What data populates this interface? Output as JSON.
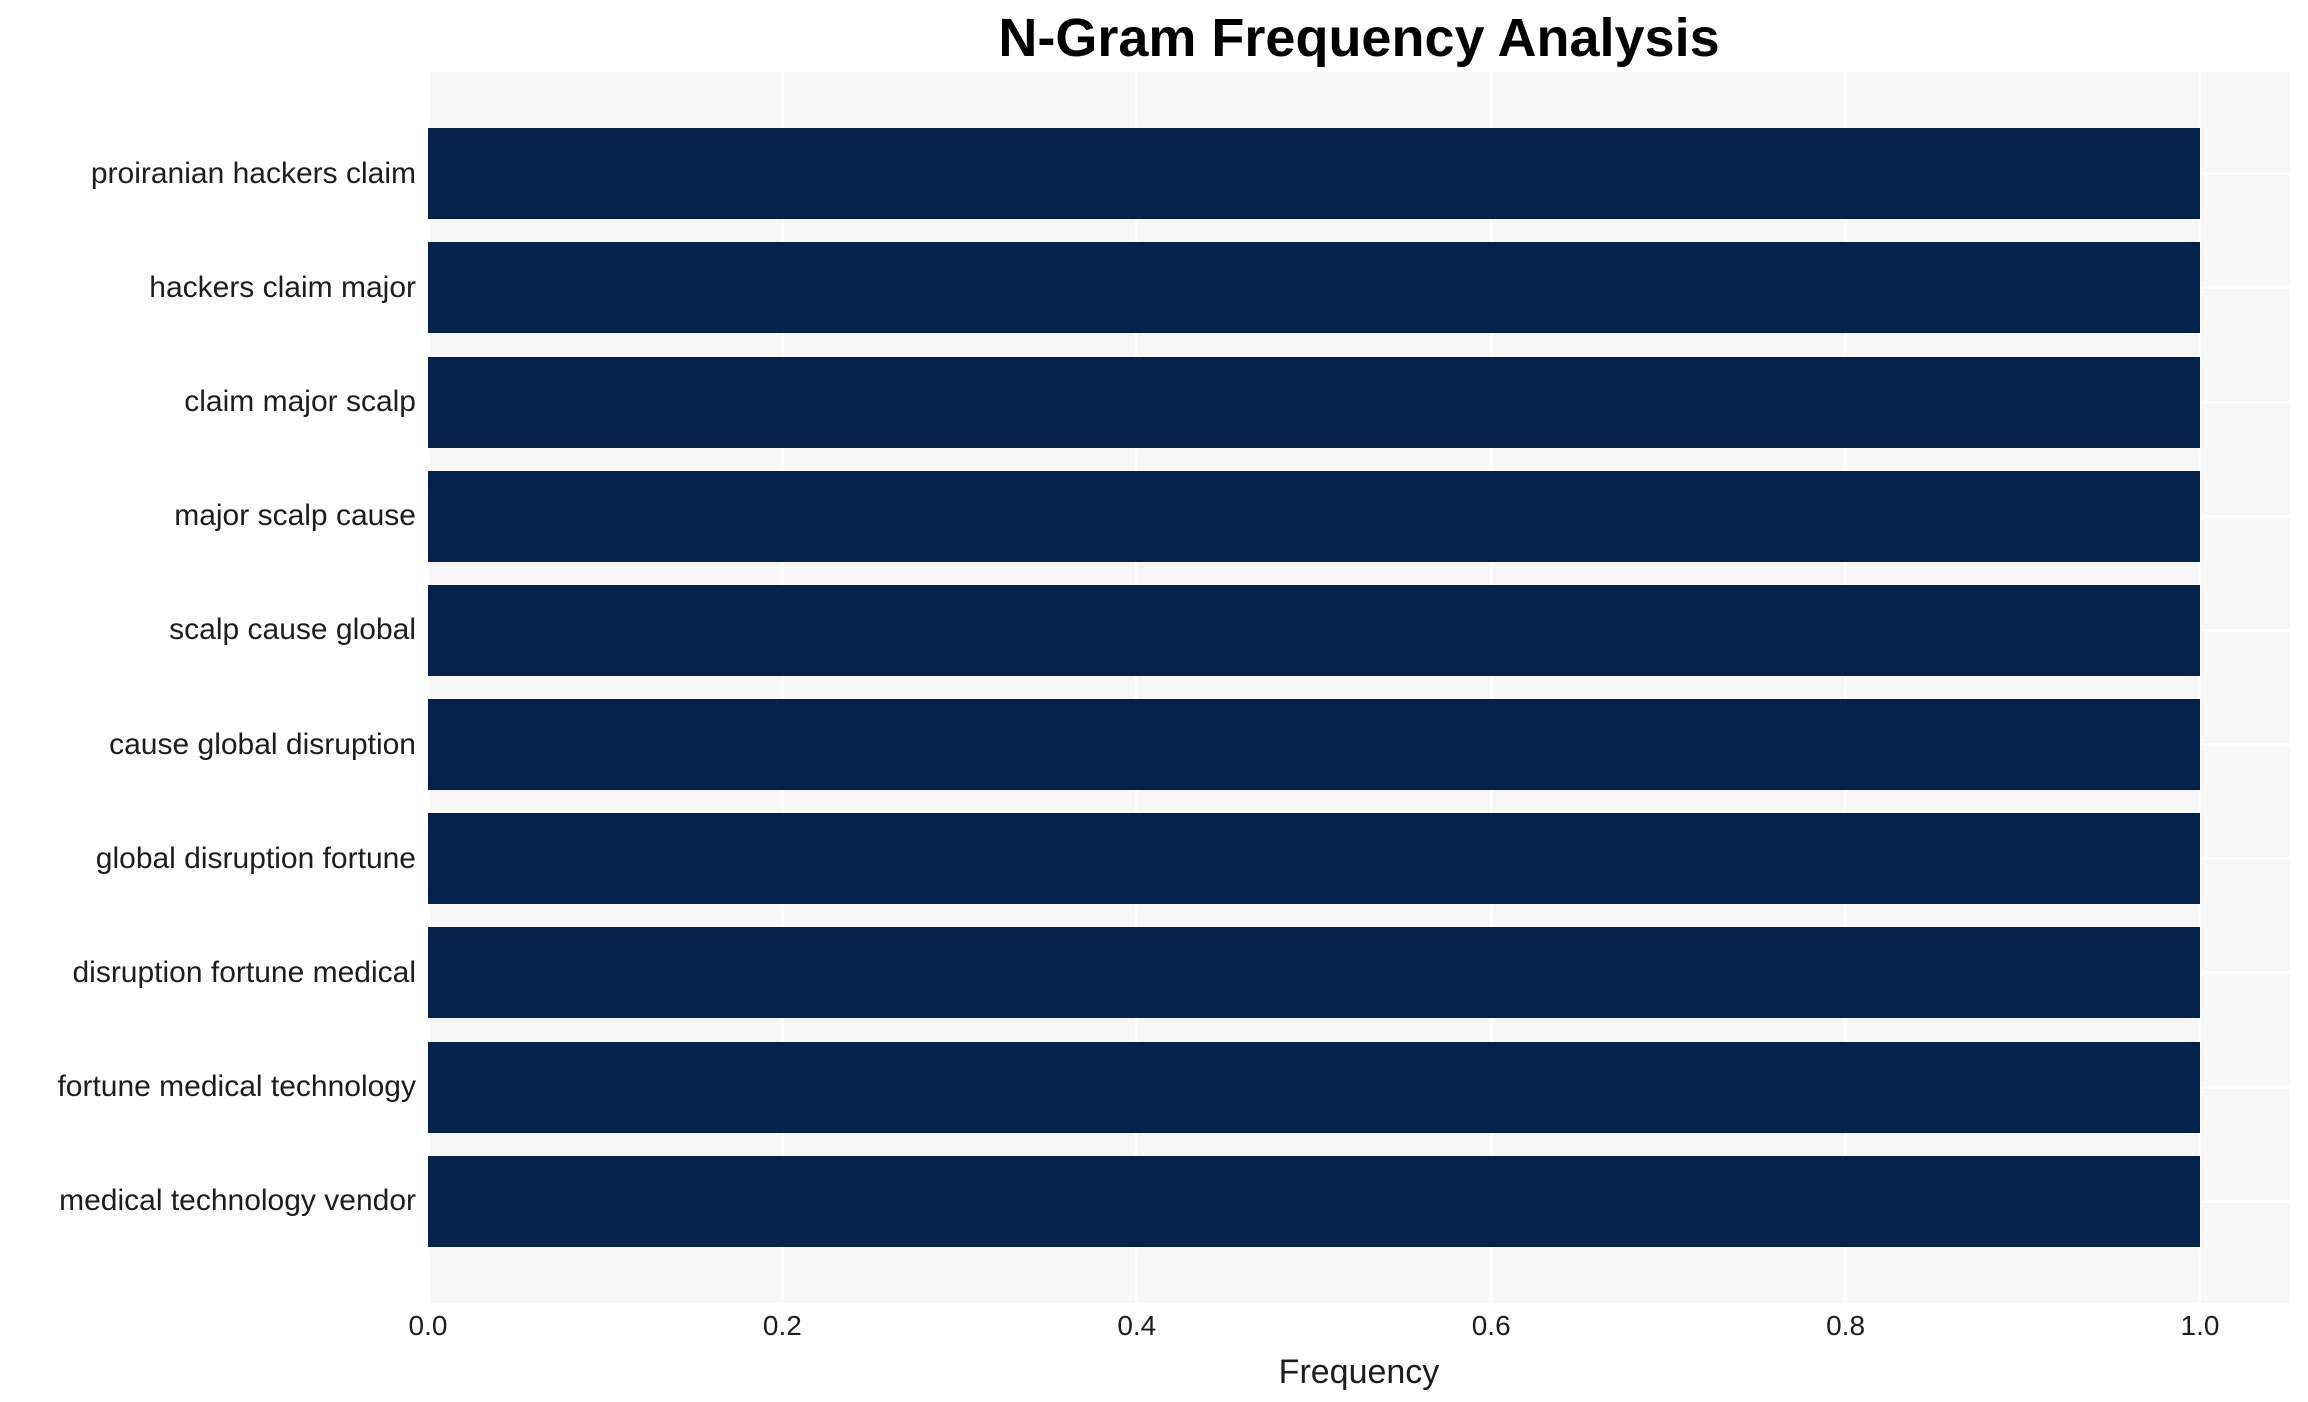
{
  "chart_data": {
    "type": "bar",
    "orientation": "horizontal",
    "title": "N-Gram Frequency Analysis",
    "xlabel": "Frequency",
    "ylabel": "",
    "categories": [
      "proiranian hackers claim",
      "hackers claim major",
      "claim major scalp",
      "major scalp cause",
      "scalp cause global",
      "cause global disruption",
      "global disruption fortune",
      "disruption fortune medical",
      "fortune medical technology",
      "medical technology vendor"
    ],
    "values": [
      1.0,
      1.0,
      1.0,
      1.0,
      1.0,
      1.0,
      1.0,
      1.0,
      1.0,
      1.0
    ],
    "x_ticks": [
      {
        "value": 0.0,
        "label": "0.0"
      },
      {
        "value": 0.2,
        "label": "0.2"
      },
      {
        "value": 0.4,
        "label": "0.4"
      },
      {
        "value": 0.6,
        "label": "0.6"
      },
      {
        "value": 0.8,
        "label": "0.8"
      },
      {
        "value": 1.0,
        "label": "1.0"
      }
    ],
    "xlim": [
      0,
      1.0508
    ],
    "grid": true,
    "legend": false,
    "colors": {
      "bar": "#03234c",
      "plot_background": "#f7f7f8",
      "gridline": "#ffffff",
      "title_text": "#000000",
      "label_text": "#1d1d1d"
    }
  }
}
